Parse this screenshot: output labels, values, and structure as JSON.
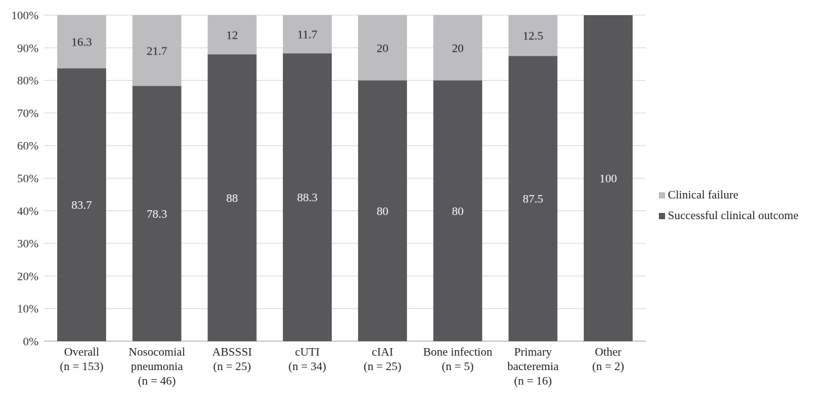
{
  "chart_data": {
    "type": "bar",
    "stacked": true,
    "categories": [
      [
        "Overall",
        "(n = 153)"
      ],
      [
        "Nosocomial",
        "pneumonia",
        "(n = 46)"
      ],
      [
        "ABSSSI",
        "(n = 25)"
      ],
      [
        "cUTI",
        "(n = 34)"
      ],
      [
        "cIAI",
        "(n = 25)"
      ],
      [
        "Bone infection",
        "(n = 5)"
      ],
      [
        "Primary",
        "bacteremia",
        "(n = 16)"
      ],
      [
        "Other",
        "(n = 2)"
      ]
    ],
    "series": [
      {
        "name": "Successful clinical outcome",
        "color": "#58585a",
        "label_color": "#ffffff",
        "values": [
          83.7,
          78.3,
          88,
          88.3,
          80,
          80,
          87.5,
          100
        ],
        "labels": [
          "83.7",
          "78.3",
          "88",
          "88.3",
          "80",
          "80",
          "87.5",
          "100"
        ]
      },
      {
        "name": "Clinical failure",
        "color": "#bdbdbf",
        "label_color": "#222222",
        "values": [
          16.3,
          21.7,
          12,
          11.7,
          20,
          20,
          12.5,
          0
        ],
        "labels": [
          "16.3",
          "21.7",
          "12",
          "11.7",
          "20",
          "20",
          "12.5",
          ""
        ]
      }
    ],
    "ylim": [
      0,
      100
    ],
    "yticks": [
      "0%",
      "10%",
      "20%",
      "30%",
      "40%",
      "50%",
      "60%",
      "70%",
      "80%",
      "90%",
      "100%"
    ],
    "grid": true,
    "legend": "right",
    "legend_order": [
      "Clinical failure",
      "Successful clinical outcome"
    ]
  }
}
